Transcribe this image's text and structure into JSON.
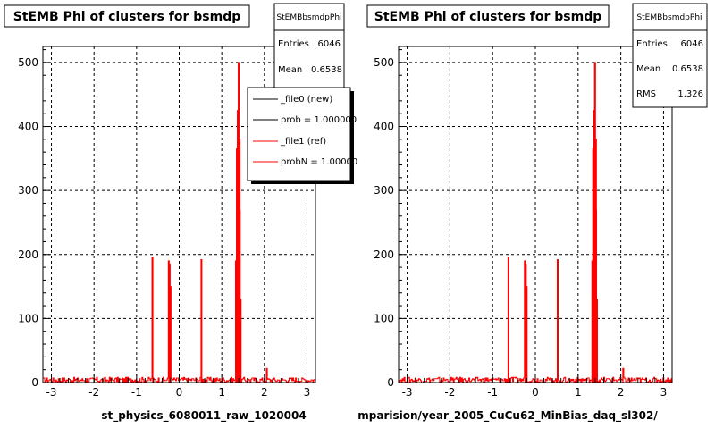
{
  "chart_data": [
    {
      "type": "histogram",
      "title": "StEMB Phi of clusters for bsmdp",
      "xlabel": "st_physics_6080011_raw_1020004",
      "ylabel": "",
      "xlim": [
        -3.2,
        3.2
      ],
      "ylim": [
        0,
        525
      ],
      "x_ticks": [
        -3,
        -2,
        -1,
        0,
        1,
        2,
        3
      ],
      "y_ticks": [
        0,
        100,
        200,
        300,
        400,
        500
      ],
      "grid": true,
      "stats": {
        "name": "StEMBbsmdpPhi",
        "entries_label": "Entries",
        "entries": "6046",
        "mean_label": "Mean",
        "mean": "0.6538"
      },
      "legend": {
        "placement": "top-right",
        "entries": [
          {
            "label": "_file0 (new)",
            "color": "#000000"
          },
          {
            "label": "prob = 1.000000",
            "color": "#000000"
          },
          {
            "label": "_file1 (ref)",
            "color": "#ff0000"
          },
          {
            "label": "probN = 1.000000",
            "color": "#ff0000"
          }
        ]
      },
      "series": [
        {
          "color": "#ff0000",
          "baseline_level": 4,
          "spikes": [
            {
              "x": -0.62,
              "y": 195
            },
            {
              "x": -0.24,
              "y": 190
            },
            {
              "x": -0.22,
              "y": 185
            },
            {
              "x": -0.2,
              "y": 150
            },
            {
              "x": 0.52,
              "y": 192
            },
            {
              "x": 1.33,
              "y": 190
            },
            {
              "x": 1.35,
              "y": 365
            },
            {
              "x": 1.37,
              "y": 425
            },
            {
              "x": 1.39,
              "y": 500
            },
            {
              "x": 1.41,
              "y": 380
            },
            {
              "x": 1.43,
              "y": 270
            },
            {
              "x": 1.45,
              "y": 130
            },
            {
              "x": 2.05,
              "y": 22
            }
          ]
        }
      ]
    },
    {
      "type": "histogram",
      "title": "StEMB Phi of clusters for bsmdp",
      "xlabel": "mparision/year_2005_CuCu62_MinBias_daq_sl302/",
      "ylabel": "",
      "xlim": [
        -3.2,
        3.2
      ],
      "ylim": [
        0,
        525
      ],
      "x_ticks": [
        -3,
        -2,
        -1,
        0,
        1,
        2,
        3
      ],
      "y_ticks": [
        0,
        100,
        200,
        300,
        400,
        500
      ],
      "grid": true,
      "stats": {
        "name": "StEMBbsmdpPhi",
        "entries_label": "Entries",
        "entries": "6046",
        "mean_label": "Mean",
        "mean": "0.6538",
        "rms_label": "RMS",
        "rms": "1.326"
      },
      "series": [
        {
          "color": "#ff0000",
          "baseline_level": 4,
          "spikes": [
            {
              "x": -0.62,
              "y": 195
            },
            {
              "x": -0.24,
              "y": 190
            },
            {
              "x": -0.22,
              "y": 185
            },
            {
              "x": -0.2,
              "y": 150
            },
            {
              "x": 0.52,
              "y": 192
            },
            {
              "x": 1.33,
              "y": 190
            },
            {
              "x": 1.35,
              "y": 365
            },
            {
              "x": 1.37,
              "y": 425
            },
            {
              "x": 1.39,
              "y": 500
            },
            {
              "x": 1.41,
              "y": 380
            },
            {
              "x": 1.43,
              "y": 270
            },
            {
              "x": 1.45,
              "y": 130
            },
            {
              "x": 2.05,
              "y": 22
            }
          ]
        }
      ]
    }
  ]
}
